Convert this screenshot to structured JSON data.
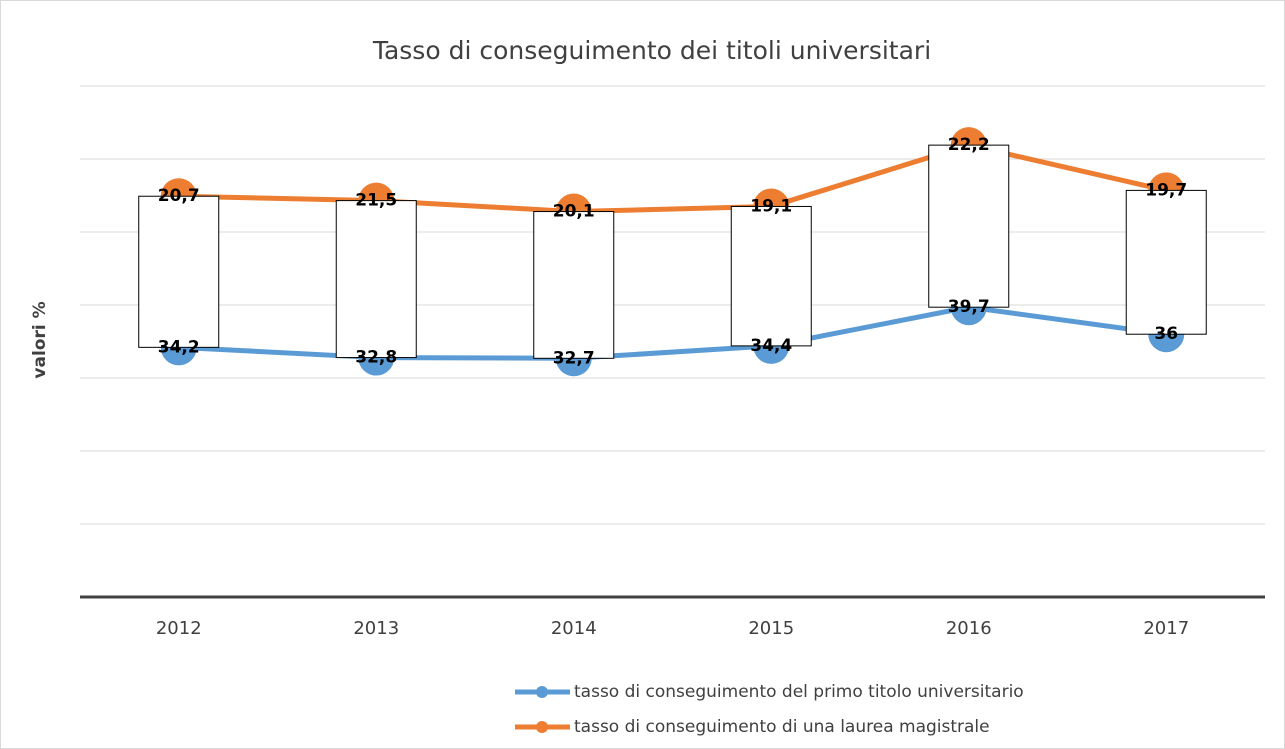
{
  "chart_data": {
    "type": "line",
    "stacked": true,
    "up_down_bars": true,
    "title": "Tasso di conseguimento dei titoli universitari",
    "y_label": "valori %",
    "categories": [
      "2012",
      "2013",
      "2014",
      "2015",
      "2016",
      "2017"
    ],
    "series": [
      {
        "name": "tasso di conseguimento del primo titolo universitario",
        "color": "#5b9bd5",
        "values": [
          34.2,
          32.8,
          32.7,
          34.4,
          39.7,
          36
        ],
        "value_labels": [
          "34,2",
          "32,8",
          "32,7",
          "34,4",
          "39,7",
          "36"
        ]
      },
      {
        "name": "tasso di conseguimento di una laurea magistrale",
        "color": "#ed7d31",
        "values": [
          20.7,
          21.5,
          20.1,
          19.1,
          22.2,
          19.7
        ],
        "value_labels": [
          "20,7",
          "21,5",
          "20,1",
          "19,1",
          "22,2",
          "19,7"
        ]
      }
    ],
    "ylim": [
      0,
      70
    ],
    "yticks": [
      0,
      10,
      20,
      30,
      40,
      50,
      60,
      70
    ],
    "grid": true,
    "legend": "bottom"
  }
}
